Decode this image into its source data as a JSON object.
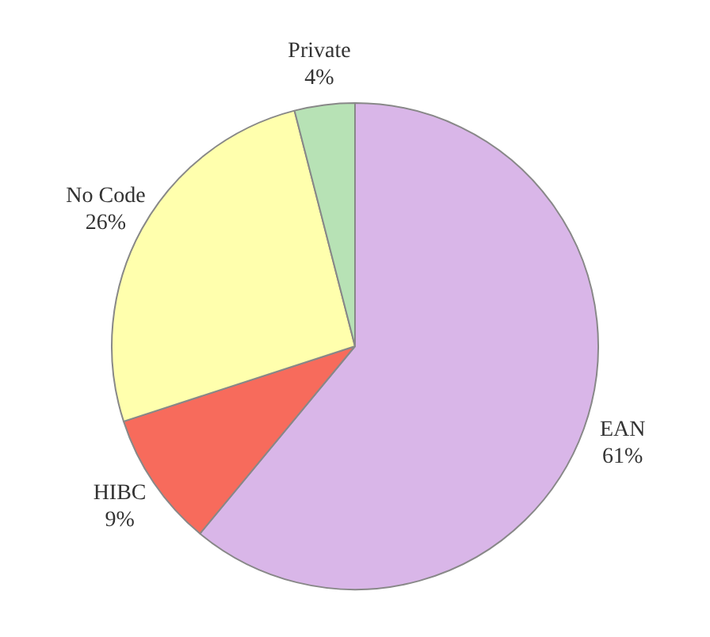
{
  "chart_data": {
    "type": "pie",
    "categories": [
      "EAN",
      "HIBC",
      "No Code",
      "Private"
    ],
    "values": [
      61,
      9,
      26,
      4
    ],
    "value_labels": [
      "61%",
      "9%",
      "26%",
      "4%"
    ],
    "colors": [
      "#d9b6e8",
      "#f76b5c",
      "#ffffad",
      "#b7e2b5"
    ],
    "legend": false
  }
}
